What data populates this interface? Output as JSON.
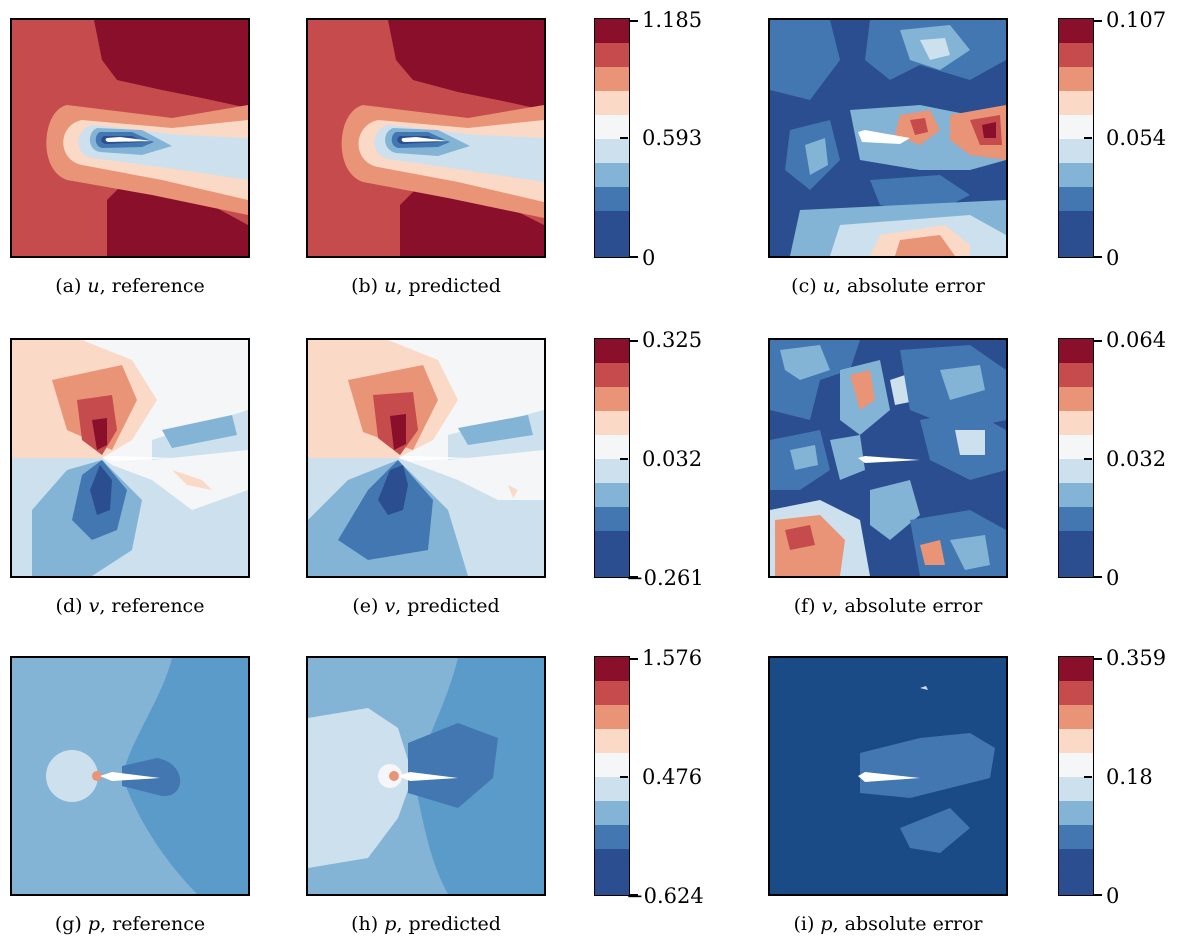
{
  "colors": {
    "c1": "#2a4e8f",
    "c2": "#4377b1",
    "c3": "#83b4d6",
    "c4": "#cde0ed",
    "c5": "#f5f6f7",
    "c6": "#fbd9c7",
    "c7": "#e99377",
    "c8": "#c64b4c",
    "c9": "#8a0f2a",
    "c0": "#1a4b87"
  },
  "rows": [
    {
      "captions": {
        "a": {
          "label": "(a)",
          "var": "u",
          "desc": ", reference"
        },
        "b": {
          "label": "(b)",
          "var": "u",
          "desc": ", predicted"
        },
        "c": {
          "label": "(c)",
          "var": "u",
          "desc": ", absolute error"
        }
      },
      "field_colorbar": {
        "max": "1.185",
        "mid": "0.593",
        "min": "0"
      },
      "error_colorbar": {
        "max": "0.107",
        "mid": "0.054",
        "min": "0"
      }
    },
    {
      "captions": {
        "a": {
          "label": "(d)",
          "var": "v",
          "desc": ", reference"
        },
        "b": {
          "label": "(e)",
          "var": "v",
          "desc": ", predicted"
        },
        "c": {
          "label": "(f)",
          "var": "v",
          "desc": ", absolute error"
        }
      },
      "field_colorbar": {
        "max": "0.325",
        "mid": "0.032",
        "min": "−0.261"
      },
      "error_colorbar": {
        "max": "0.064",
        "mid": "0.032",
        "min": "0"
      }
    },
    {
      "captions": {
        "a": {
          "label": "(g)",
          "var": "p",
          "desc": ", reference"
        },
        "b": {
          "label": "(h)",
          "var": "p",
          "desc": ", predicted"
        },
        "c": {
          "label": "(i)",
          "var": "p",
          "desc": ", absolute error"
        }
      },
      "field_colorbar": {
        "max": "1.576",
        "mid": "0.476",
        "min": "−0.624"
      },
      "error_colorbar": {
        "max": "0.359",
        "mid": "0.18",
        "min": "0"
      }
    }
  ]
}
